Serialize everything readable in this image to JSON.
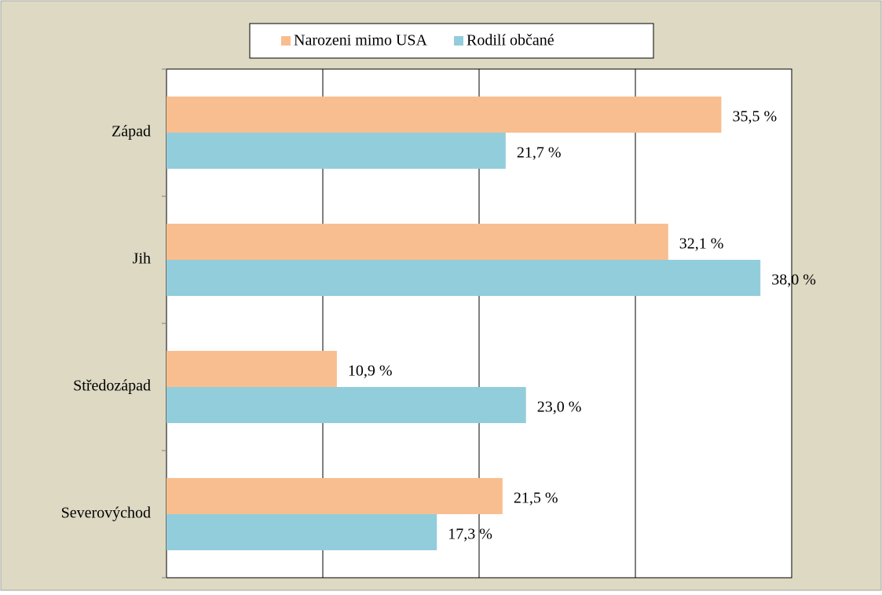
{
  "chart_data": {
    "type": "hbar",
    "categories": [
      "Západ",
      "Jih",
      "Středozápad",
      "Severovýchod"
    ],
    "series": [
      {
        "name": "Narozeni mimo USA",
        "color": "#f9be8f",
        "values": [
          35.5,
          32.1,
          10.9,
          21.5
        ],
        "value_labels": [
          "35,5 %",
          "32,1 %",
          "10,9 %",
          "21,5 %"
        ]
      },
      {
        "name": "Rodilí občané",
        "color": "#92cddc",
        "values": [
          21.7,
          38.0,
          23.0,
          17.3
        ],
        "value_labels": [
          "21,7 %",
          "38,0 %",
          "23,0 %",
          "17,3 %"
        ]
      }
    ],
    "xlim": [
      0,
      40
    ],
    "xticks": [
      0,
      10,
      20,
      30,
      40
    ],
    "grid": true,
    "legend": "top"
  }
}
